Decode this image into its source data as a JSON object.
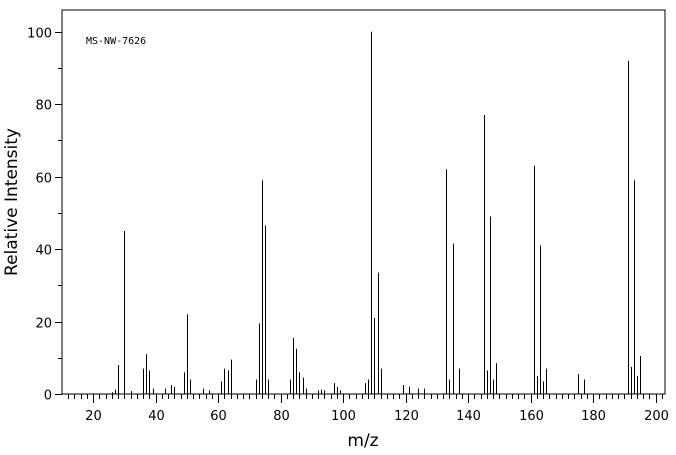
{
  "chart_data": {
    "type": "bar",
    "annotation": "MS-NW-7626",
    "xlabel": "m/z",
    "ylabel": "Relative Intensity",
    "xlim": [
      10,
      203
    ],
    "ylim": [
      0,
      106
    ],
    "x_ticks": [
      20,
      40,
      60,
      80,
      100,
      120,
      140,
      160,
      180,
      200
    ],
    "y_ticks": [
      0,
      20,
      40,
      60,
      80,
      100
    ],
    "grid": false,
    "series": [
      {
        "x": [
          26,
          27,
          28,
          30,
          32,
          36,
          37,
          38,
          39,
          43,
          45,
          46,
          49,
          50,
          51,
          55,
          57,
          61,
          62,
          63,
          64,
          72,
          73,
          74,
          75,
          76,
          83,
          84,
          85,
          86,
          87,
          88,
          92,
          93,
          94,
          97,
          98,
          99,
          107,
          108,
          109,
          110,
          111,
          112,
          119,
          121,
          124,
          126,
          133,
          134,
          135,
          137,
          145,
          146,
          147,
          148,
          149,
          161,
          162,
          163,
          164,
          165,
          175,
          177,
          191,
          192,
          193,
          194,
          195
        ],
        "values": [
          0.5,
          1.2,
          8,
          45,
          0.8,
          7,
          11,
          6.5,
          1.5,
          1.5,
          2.5,
          2,
          6,
          22,
          4,
          1.5,
          1,
          3.5,
          7,
          6.5,
          9.5,
          4,
          19.5,
          59,
          46.5,
          4,
          4,
          15.5,
          12.5,
          6,
          4.5,
          1.5,
          1,
          1.2,
          1,
          3,
          2,
          1,
          3,
          4,
          100,
          21,
          33.5,
          7,
          2.5,
          2,
          1.5,
          1.5,
          62,
          4,
          41.5,
          7,
          77,
          6.5,
          49,
          4,
          8.5,
          63,
          5,
          41,
          3.5,
          7,
          5.5,
          4,
          92,
          7.5,
          59,
          5,
          10.5
        ]
      }
    ]
  }
}
